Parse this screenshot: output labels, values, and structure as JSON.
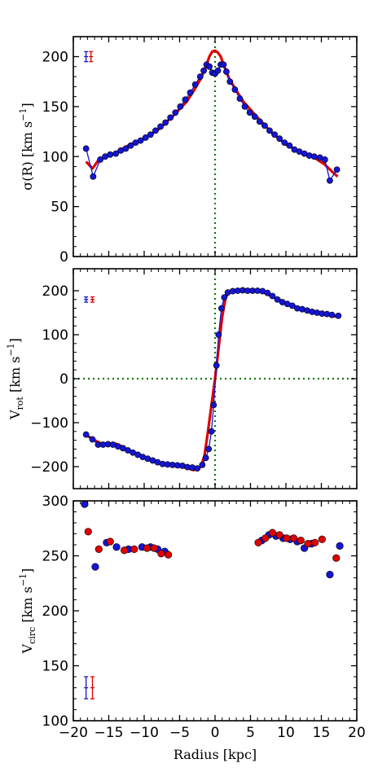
{
  "chart_data": [
    {
      "type": "line",
      "ylabel": "σ(R) [km s⁻¹]",
      "ylabel_main": "σ(R) [km s",
      "ylabel_sup": "−1",
      "ylabel_end": "]",
      "xlim": [
        -20,
        20
      ],
      "ylim": [
        0,
        220
      ],
      "yticks": [
        0,
        50,
        100,
        150,
        200
      ],
      "ytick_labels": [
        "0",
        "50",
        "100",
        "150",
        "200"
      ],
      "vline_x": 0,
      "hline_y": null,
      "series": [
        {
          "color": "#e00000",
          "kind": "line",
          "x": [
            -18.2,
            -17.3,
            -16.5,
            -15.5,
            -14,
            -12,
            -10,
            -8,
            -6,
            -4,
            -3,
            -2,
            -1.3,
            -0.8,
            -0.4,
            0,
            0.4,
            0.8,
            1.3,
            2,
            3,
            4,
            6,
            8,
            10,
            12,
            14,
            15.5,
            16.5,
            17.3
          ],
          "y": [
            95,
            88,
            96,
            100,
            104,
            112,
            118,
            127,
            140,
            155,
            166,
            178,
            190,
            200,
            205,
            206,
            204,
            200,
            190,
            178,
            166,
            155,
            139,
            124,
            112,
            105,
            99,
            92,
            85,
            80
          ]
        },
        {
          "color": "#1515d4",
          "kind": "line-markers",
          "x": [
            -18.2,
            -17.2,
            -16.2,
            -15.5,
            -14.8,
            -14,
            -13.3,
            -12.6,
            -11.9,
            -11.2,
            -10.5,
            -9.8,
            -9.1,
            -8.4,
            -7.7,
            -7,
            -6.3,
            -5.6,
            -4.9,
            -4.2,
            -3.5,
            -2.8,
            -2.1,
            -1.6,
            -1.2,
            -0.8,
            -0.4,
            0,
            0.4,
            0.8,
            1.2,
            1.6,
            2.1,
            2.8,
            3.5,
            4.2,
            4.9,
            5.6,
            6.3,
            7,
            7.7,
            8.4,
            9.1,
            9.8,
            10.5,
            11.2,
            11.9,
            12.6,
            13.3,
            14,
            14.8,
            15.5,
            16.2,
            17.2
          ],
          "y": [
            108,
            80,
            97,
            100,
            102,
            103,
            106,
            108,
            111,
            114,
            116,
            119,
            122,
            126,
            130,
            134,
            139,
            144,
            150,
            157,
            164,
            172,
            180,
            186,
            192,
            190,
            184,
            183,
            186,
            192,
            192,
            185,
            175,
            167,
            158,
            150,
            144,
            140,
            135,
            131,
            126,
            122,
            118,
            114,
            111,
            107,
            105,
            103,
            101,
            100,
            99,
            97,
            76,
            87
          ]
        }
      ],
      "error_bars": [
        {
          "color": "#1515d4",
          "x": -18.2,
          "y": 200,
          "yerr": 5
        },
        {
          "color": "#e00000",
          "x": -17.5,
          "y": 200,
          "yerr": 5
        }
      ]
    },
    {
      "type": "line",
      "ylabel": "V_rot [km s⁻¹]",
      "ylabel_main": "V",
      "ylabel_sub": "rot",
      "ylabel_rest": " [km s",
      "ylabel_sup": "−1",
      "ylabel_end": "]",
      "xlim": [
        -20,
        20
      ],
      "ylim": [
        -250,
        250
      ],
      "yticks": [
        -200,
        -100,
        0,
        100,
        200
      ],
      "ytick_labels": [
        "−200",
        "−100",
        "0",
        "100",
        "200"
      ],
      "vline_x": 0,
      "hline_y": 0,
      "series": [
        {
          "color": "#e00000",
          "kind": "line",
          "x": [
            -18.2,
            -17,
            -16,
            -15,
            -14,
            -13,
            -12,
            -11,
            -10,
            -9,
            -8,
            -7,
            -6,
            -5,
            -4,
            -3,
            -2,
            -1.5,
            -1,
            -0.5,
            0,
            0.5,
            1,
            1.5,
            2,
            3,
            4,
            5,
            6,
            7,
            8,
            9,
            10,
            11,
            12,
            13,
            14,
            15,
            16,
            17.4
          ],
          "y": [
            -128,
            -140,
            -148,
            -147,
            -148,
            -155,
            -165,
            -170,
            -178,
            -186,
            -192,
            -195,
            -197,
            -200,
            -203,
            -208,
            -200,
            -175,
            -120,
            -60,
            0,
            70,
            140,
            185,
            197,
            202,
            203,
            202,
            200,
            195,
            187,
            180,
            172,
            165,
            160,
            155,
            150,
            147,
            145,
            140
          ]
        },
        {
          "color": "#1515d4",
          "kind": "line-markers",
          "x": [
            -18.2,
            -17.3,
            -16.5,
            -15.8,
            -15.1,
            -14.4,
            -13.7,
            -13,
            -12.3,
            -11.6,
            -10.9,
            -10.2,
            -9.5,
            -8.8,
            -8.1,
            -7.4,
            -6.7,
            -6,
            -5.3,
            -4.6,
            -3.9,
            -3.2,
            -2.5,
            -1.8,
            -1.3,
            -0.9,
            -0.5,
            -0.2,
            0.2,
            0.5,
            0.9,
            1.3,
            1.8,
            2.5,
            3.2,
            3.9,
            4.6,
            5.3,
            6,
            6.7,
            7.4,
            8.1,
            8.8,
            9.5,
            10.2,
            10.9,
            11.6,
            12.3,
            13,
            13.7,
            14.4,
            15.1,
            15.8,
            16.5,
            17.4
          ],
          "y": [
            -127,
            -138,
            -150,
            -150,
            -149,
            -150,
            -154,
            -158,
            -163,
            -168,
            -173,
            -178,
            -182,
            -186,
            -190,
            -194,
            -195,
            -196,
            -197,
            -198,
            -201,
            -202,
            -204,
            -196,
            -180,
            -160,
            -120,
            -60,
            30,
            100,
            160,
            185,
            196,
            199,
            200,
            201,
            200,
            200,
            200,
            199,
            195,
            188,
            180,
            174,
            170,
            166,
            160,
            158,
            155,
            152,
            150,
            148,
            147,
            145,
            143
          ]
        }
      ],
      "error_bars": [
        {
          "color": "#1515d4",
          "x": -18.2,
          "y": 180,
          "yerr": 6
        },
        {
          "color": "#e00000",
          "x": -17.3,
          "y": 180,
          "yerr": 6
        }
      ]
    },
    {
      "type": "scatter",
      "ylabel": "V_circ [km s⁻¹]",
      "ylabel_main": "V",
      "ylabel_sub": "circ",
      "ylabel_rest": " [km s",
      "ylabel_sup": "−1",
      "ylabel_end": "]",
      "xlabel": "Radius [kpc]",
      "xlim": [
        -20,
        20
      ],
      "ylim": [
        100,
        300
      ],
      "xticks": [
        -20,
        -15,
        -10,
        -5,
        0,
        5,
        10,
        15,
        20
      ],
      "xtick_labels": [
        "−20",
        "−15",
        "−10",
        "−5",
        "0",
        "5",
        "10",
        "15",
        "20"
      ],
      "yticks": [
        100,
        150,
        200,
        250,
        300
      ],
      "ytick_labels": [
        "100",
        "150",
        "200",
        "250",
        "300"
      ],
      "series": [
        {
          "color": "#1515d4",
          "kind": "markers",
          "x": [
            -18.4,
            -16.9,
            -15.3,
            -13.9,
            -12.2,
            -10.3,
            -9.1,
            -8.1,
            -7.1,
            6.6,
            7.6,
            8.6,
            9.6,
            10.6,
            11.6,
            12.6,
            13.6,
            16.2,
            17.6
          ],
          "y": [
            297,
            240,
            262,
            258,
            256,
            258,
            258,
            256,
            254,
            264,
            269,
            268,
            266,
            265,
            263,
            257,
            261,
            233,
            259
          ]
        },
        {
          "color": "#e00000",
          "kind": "markers",
          "x": [
            -17.9,
            -16.4,
            -14.8,
            -12.8,
            -11.4,
            -9.6,
            -8.6,
            -7.6,
            -6.6,
            6.1,
            7.1,
            8.1,
            9.1,
            10.1,
            11.1,
            12.1,
            13.1,
            14.1,
            15.1,
            17.1
          ],
          "y": [
            272,
            256,
            263,
            255,
            256,
            257,
            257,
            252,
            251,
            262,
            266,
            271,
            269,
            266,
            266,
            264,
            261,
            262,
            265,
            248
          ]
        }
      ],
      "error_bars": [
        {
          "color": "#1515d4",
          "x": -18.2,
          "y": 130,
          "yerr": 10
        },
        {
          "color": "#e00000",
          "x": -17.3,
          "y": 130,
          "yerr": 10
        }
      ]
    }
  ]
}
